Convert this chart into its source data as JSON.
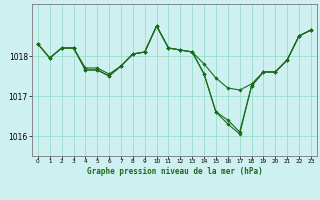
{
  "title": "Graphe pression niveau de la mer (hPa)",
  "background_color": "#cef0f0",
  "grid_color": "#99ddcc",
  "line_color": "#1a6b1a",
  "marker_color": "#1a6b1a",
  "ylim": [
    1015.5,
    1019.3
  ],
  "xlim": [
    -0.5,
    23.5
  ],
  "yticks": [
    1016,
    1017,
    1018
  ],
  "xticks": [
    0,
    1,
    2,
    3,
    4,
    5,
    6,
    7,
    8,
    9,
    10,
    11,
    12,
    13,
    14,
    15,
    16,
    17,
    18,
    19,
    20,
    21,
    22,
    23
  ],
  "lines": [
    [
      1018.3,
      1017.95,
      1018.2,
      1018.2,
      1017.65,
      1017.65,
      1017.5,
      1017.75,
      1018.05,
      1018.1,
      1018.75,
      1018.2,
      1018.15,
      1018.1,
      1017.55,
      1016.6,
      1016.4,
      1016.1,
      1017.25,
      1017.6,
      1017.6,
      1017.9,
      1018.5,
      1018.65
    ],
    [
      1018.3,
      1017.95,
      1018.2,
      1018.2,
      1017.65,
      1017.65,
      1017.5,
      1017.75,
      1018.05,
      1018.1,
      1018.75,
      1018.2,
      1018.15,
      1018.1,
      1017.55,
      1016.6,
      1016.3,
      1016.05,
      1017.25,
      1017.6,
      1017.6,
      1017.9,
      1018.5,
      1018.65
    ],
    [
      1018.3,
      1017.95,
      1018.2,
      1018.2,
      1017.7,
      1017.7,
      1017.55,
      1017.75,
      1018.05,
      1018.1,
      1018.75,
      1018.2,
      1018.15,
      1018.1,
      1017.8,
      1017.45,
      1017.2,
      1017.15,
      1017.3,
      1017.6,
      1017.6,
      1017.9,
      1018.5,
      1018.65
    ]
  ],
  "figsize": [
    3.2,
    2.0
  ],
  "dpi": 100
}
